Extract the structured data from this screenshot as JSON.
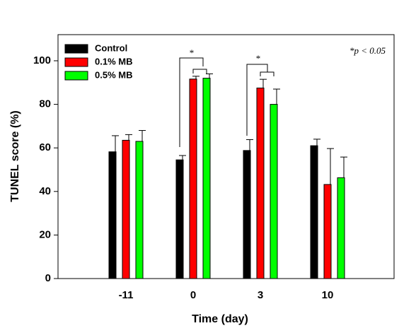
{
  "chart_data": {
    "type": "bar",
    "x_label": "Time (day)",
    "y_label": "TUNEL score (%)",
    "categories": [
      "-11",
      "0",
      "3",
      "10"
    ],
    "series": [
      {
        "name": "Control",
        "color": "#000000",
        "values": [
          58.2,
          54.5,
          58.8,
          61
        ],
        "errors": [
          7.4,
          2,
          5,
          3
        ]
      },
      {
        "name": "0.1% MB",
        "color": "#ff0000",
        "values": [
          63.5,
          91.6,
          87.5,
          43.2
        ],
        "errors": [
          2.6,
          1.3,
          4,
          16.5
        ]
      },
      {
        "name": "0.5% MB",
        "color": "#00ff00",
        "values": [
          63,
          92,
          80,
          46.3
        ],
        "errors": [
          5,
          2,
          7,
          9.5
        ]
      }
    ],
    "ylim": [
      0,
      112
    ],
    "yticks": [
      0,
      20,
      40,
      60,
      80,
      100
    ],
    "legend": "upper-left",
    "annotations": [
      "*p < 0.05",
      "*",
      "*"
    ]
  }
}
